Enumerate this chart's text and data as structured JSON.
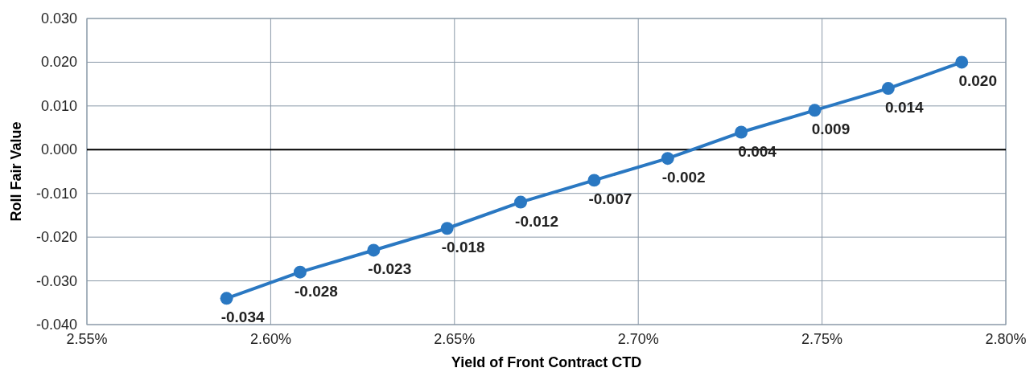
{
  "chart_data": {
    "type": "line",
    "xlabel": "Yield of Front Contract CTD",
    "ylabel": "Roll Fair Value",
    "x": [
      2.588,
      2.608,
      2.628,
      2.648,
      2.668,
      2.688,
      2.708,
      2.728,
      2.748,
      2.768,
      2.788
    ],
    "series": [
      {
        "color": "#2a78c2",
        "values": [
          -0.034,
          -0.028,
          -0.023,
          -0.018,
          -0.012,
          -0.007,
          -0.002,
          0.004,
          0.009,
          0.014,
          0.02
        ],
        "value_labels": [
          "-0.034",
          "-0.028",
          "-0.023",
          "-0.018",
          "-0.012",
          "-0.007",
          "-0.002",
          "0.004",
          "0.009",
          "0.014",
          "0.020"
        ]
      }
    ],
    "xlim": [
      2.55,
      2.8
    ],
    "xticks": [
      {
        "value": 2.55,
        "label": "2.55%"
      },
      {
        "value": 2.6,
        "label": "2.60%"
      },
      {
        "value": 2.65,
        "label": "2.65%"
      },
      {
        "value": 2.7,
        "label": "2.70%"
      },
      {
        "value": 2.75,
        "label": "2.75%"
      },
      {
        "value": 2.8,
        "label": "2.80%"
      }
    ],
    "ylim": [
      -0.04,
      0.03
    ],
    "yticks": [
      {
        "value": -0.04,
        "label": "-0.040"
      },
      {
        "value": -0.03,
        "label": "-0.030"
      },
      {
        "value": -0.02,
        "label": "-0.020"
      },
      {
        "value": -0.01,
        "label": "-0.010"
      },
      {
        "value": 0,
        "label": "0.000"
      },
      {
        "value": 0.01,
        "label": "0.010"
      },
      {
        "value": 0.02,
        "label": "0.020"
      },
      {
        "value": 0.03,
        "label": "0.030"
      }
    ],
    "ref_lines": [
      {
        "axis": "y",
        "value": 0,
        "color": "#000000"
      }
    ],
    "grid": true,
    "marker": "circle",
    "line_style": "solid"
  }
}
